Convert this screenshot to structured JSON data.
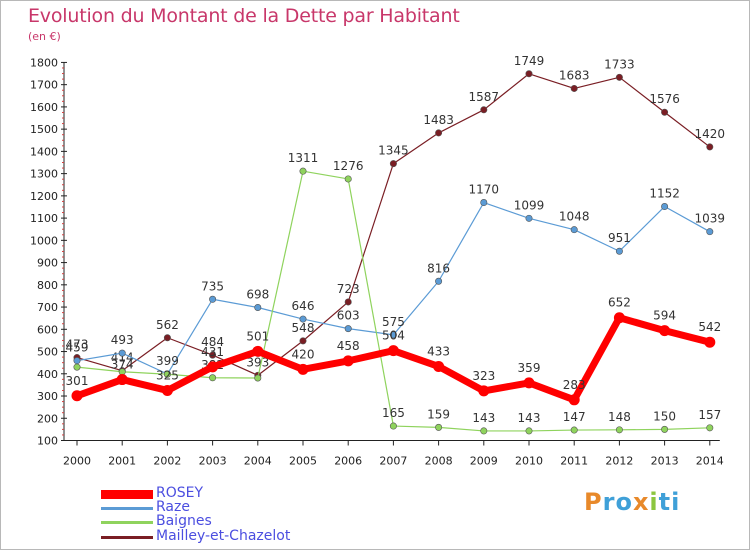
{
  "chart_data": {
    "type": "line",
    "title": "Evolution du Montant de la Dette par Habitant",
    "subtitle": "(en €)",
    "xlabel": "",
    "ylabel": "",
    "categories": [
      "2000",
      "2001",
      "2002",
      "2003",
      "2004",
      "2005",
      "2006",
      "2007",
      "2008",
      "2009",
      "2010",
      "2011",
      "2012",
      "2013",
      "2014"
    ],
    "ylim": [
      100,
      1800
    ],
    "yticks": [
      "100",
      "200",
      "300",
      "400",
      "500",
      "600",
      "700",
      "800",
      "900",
      "1000",
      "1100",
      "1200",
      "1300",
      "1400",
      "1500",
      "1600",
      "1700",
      "1800"
    ],
    "grid": false,
    "legend_position": "bottom-left",
    "series": [
      {
        "name": "Mailley-et-Chazelot",
        "color": "#7a1e24",
        "values": [
          473,
          414,
          562,
          484,
          393,
          548,
          723,
          1345,
          1483,
          1587,
          1749,
          1683,
          1733,
          1576,
          1420
        ],
        "labels": [
          "473",
          "414",
          "562",
          "484",
          "393",
          "548",
          "723",
          "1345",
          "1483",
          "1587",
          "1749",
          "1683",
          "1733",
          "1576",
          "1420"
        ]
      },
      {
        "name": "Raze",
        "color": "#5b9bd5",
        "values": [
          459,
          493,
          399,
          735,
          698,
          646,
          603,
          575,
          816,
          1170,
          1099,
          1048,
          951,
          1152,
          1039
        ],
        "labels": [
          "459",
          "493",
          "399",
          "735",
          "698",
          "646",
          "603",
          "575",
          "816",
          "1170",
          "1099",
          "1048",
          "951",
          "1152",
          "1039"
        ]
      },
      {
        "name": "Baignes",
        "color": "#8fd35d",
        "values": [
          430,
          409,
          398,
          382,
          381,
          1311,
          1276,
          165,
          159,
          143,
          143,
          147,
          148,
          150,
          157
        ],
        "labels": [
          "",
          "",
          "",
          "382",
          "",
          "1311",
          "1276",
          "165",
          "159",
          "143",
          "143",
          "147",
          "148",
          "150",
          "157"
        ]
      },
      {
        "name": "ROSEY",
        "color": "#ff0000",
        "values": [
          301,
          374,
          325,
          431,
          501,
          420,
          458,
          504,
          433,
          323,
          359,
          283,
          652,
          594,
          542
        ],
        "labels": [
          "301",
          "374",
          "325",
          "431",
          "501",
          "420",
          "458",
          "504",
          "433",
          "323",
          "359",
          "283",
          "652",
          "594",
          "542"
        ]
      }
    ],
    "legend": [
      {
        "name": "ROSEY",
        "color": "#ff0000",
        "text_color": "#4b4ee0"
      },
      {
        "name": "Raze",
        "color": "#5b9bd5",
        "text_color": "#4b4ee0"
      },
      {
        "name": "Baignes",
        "color": "#8fd35d",
        "text_color": "#4b4ee0"
      },
      {
        "name": "Mailley-et-Chazelot",
        "color": "#7a1e24",
        "text_color": "#4b4ee0"
      }
    ]
  },
  "branding": {
    "letters": [
      "P",
      "r",
      "o",
      "x",
      "i",
      "t",
      "i"
    ],
    "colors": [
      "#e8892a",
      "#3fa0d8",
      "#3fa0d8",
      "#e8892a",
      "#8cc63f",
      "#3fa0d8",
      "#3fa0d8"
    ]
  }
}
